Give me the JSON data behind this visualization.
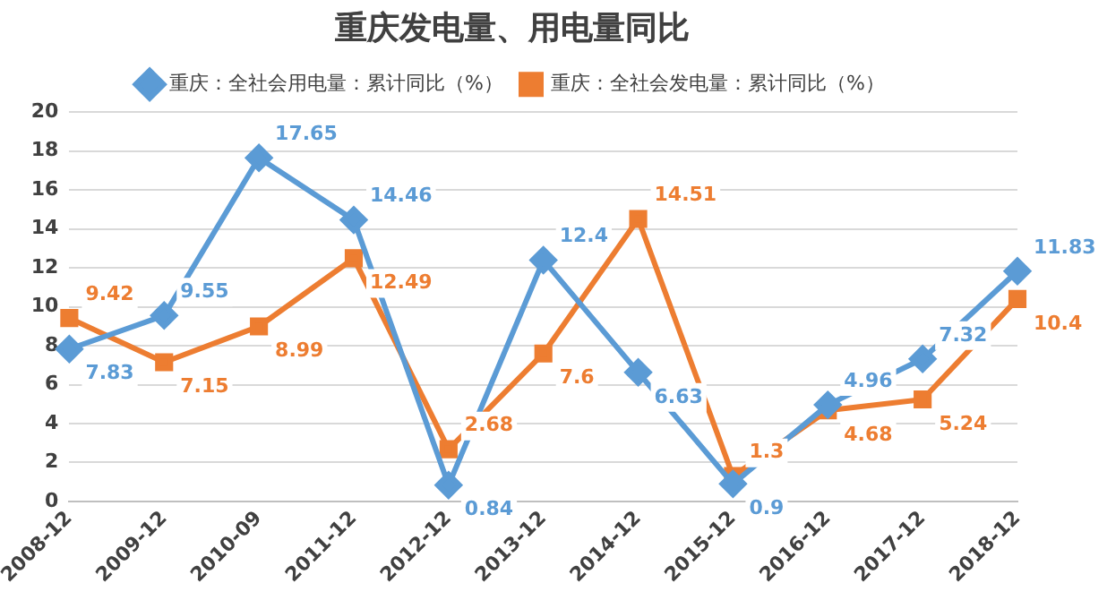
{
  "chart_data": {
    "type": "line",
    "title": "重庆发电量、用电量同比",
    "categories": [
      "2008-12",
      "2009-12",
      "2010-09",
      "2011-12",
      "2012-12",
      "2013-12",
      "2014-12",
      "2015-12",
      "2016-12",
      "2017-12",
      "2018-12"
    ],
    "series": [
      {
        "name": "重庆：全社会用电量：累计同比（%）",
        "color": "#5b9bd5",
        "marker": "diamond",
        "values": [
          7.83,
          9.55,
          17.65,
          14.46,
          0.84,
          12.4,
          6.63,
          0.9,
          4.96,
          7.32,
          11.83
        ]
      },
      {
        "name": "重庆：全社会发电量：累计同比（%）",
        "color": "#ed7d31",
        "marker": "square",
        "values": [
          9.42,
          7.15,
          8.99,
          12.49,
          2.68,
          7.6,
          14.51,
          1.3,
          4.68,
          5.24,
          10.4
        ]
      }
    ],
    "ylim": [
      0,
      20
    ],
    "yticks": [
      0,
      2,
      4,
      6,
      8,
      10,
      12,
      14,
      16,
      18,
      20
    ],
    "grid": "y",
    "legend": "top",
    "data_labels": true
  }
}
